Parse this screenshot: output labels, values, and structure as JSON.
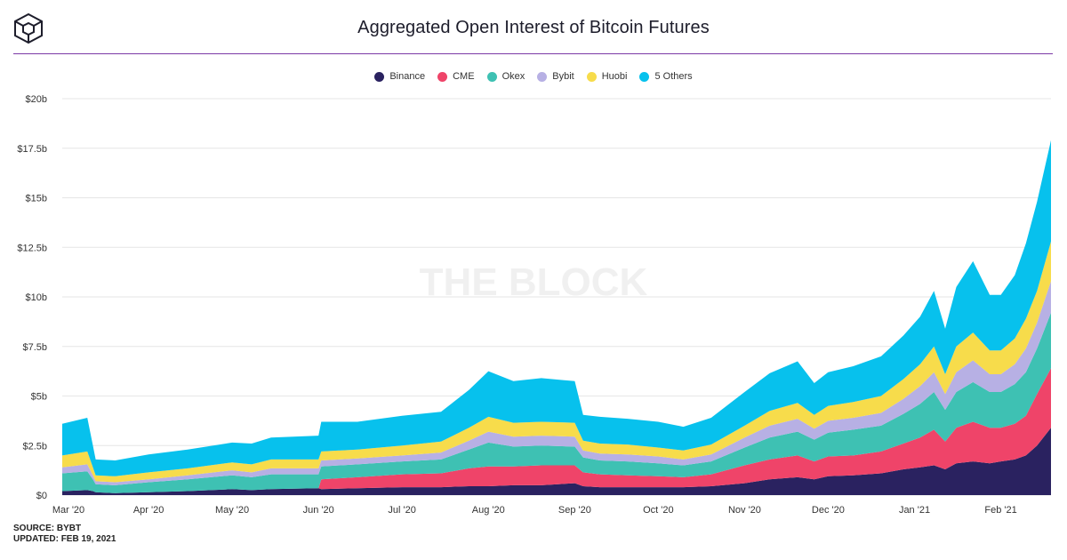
{
  "title": "Aggregated Open Interest of Bitcoin Futures",
  "watermark": "THE BLOCK",
  "footer": {
    "source": "SOURCE: BYBT",
    "updated": "UPDATED: FEB 19, 2021"
  },
  "chart_data": {
    "type": "area",
    "stacked": true,
    "title": "Aggregated Open Interest of Bitcoin Futures",
    "x_tick_labels": [
      "Mar '20",
      "Apr '20",
      "May '20",
      "Jun '20",
      "Jul '20",
      "Aug '20",
      "Sep '20",
      "Oct '20",
      "Nov '20",
      "Dec '20",
      "Jan '21",
      "Feb '21"
    ],
    "y_tick_labels": [
      "$0",
      "$2.5b",
      "$5b",
      "$7.5b",
      "$10b",
      "$12.5b",
      "$15b",
      "$17.5b",
      "$20b"
    ],
    "ylim": [
      0,
      20
    ],
    "y_unit": "billion USD",
    "legend_position": "top-center",
    "grid": true,
    "x": [
      "2020-03-01",
      "2020-03-10",
      "2020-03-12",
      "2020-03-13",
      "2020-03-20",
      "2020-04-01",
      "2020-04-15",
      "2020-05-01",
      "2020-05-08",
      "2020-05-15",
      "2020-06-01",
      "2020-06-02",
      "2020-06-15",
      "2020-07-01",
      "2020-07-15",
      "2020-07-25",
      "2020-08-01",
      "2020-08-10",
      "2020-08-20",
      "2020-09-01",
      "2020-09-04",
      "2020-09-10",
      "2020-09-20",
      "2020-10-01",
      "2020-10-10",
      "2020-10-20",
      "2020-11-01",
      "2020-11-10",
      "2020-11-20",
      "2020-11-26",
      "2020-12-01",
      "2020-12-10",
      "2020-12-20",
      "2020-12-28",
      "2021-01-03",
      "2021-01-08",
      "2021-01-12",
      "2021-01-16",
      "2021-01-22",
      "2021-01-28",
      "2021-02-01",
      "2021-02-06",
      "2021-02-10",
      "2021-02-14",
      "2021-02-19"
    ],
    "series": [
      {
        "name": "Binance",
        "color": "#2a2260",
        "values": [
          0.2,
          0.25,
          0.2,
          0.15,
          0.1,
          0.15,
          0.2,
          0.3,
          0.25,
          0.3,
          0.35,
          0.3,
          0.35,
          0.4,
          0.4,
          0.45,
          0.45,
          0.5,
          0.5,
          0.6,
          0.45,
          0.4,
          0.4,
          0.4,
          0.4,
          0.45,
          0.6,
          0.8,
          0.9,
          0.8,
          0.95,
          1.0,
          1.1,
          1.3,
          1.4,
          1.5,
          1.3,
          1.6,
          1.7,
          1.6,
          1.7,
          1.8,
          2.0,
          2.5,
          3.4
        ]
      },
      {
        "name": "CME",
        "color": "#ef4469",
        "values": [
          0,
          0,
          0,
          0,
          0,
          0,
          0,
          0,
          0,
          0,
          0,
          0.5,
          0.55,
          0.65,
          0.7,
          0.9,
          1.0,
          0.95,
          1.0,
          0.9,
          0.7,
          0.65,
          0.6,
          0.55,
          0.5,
          0.6,
          0.9,
          1.0,
          1.1,
          0.9,
          1.0,
          1.0,
          1.1,
          1.3,
          1.5,
          1.8,
          1.4,
          1.8,
          2.0,
          1.8,
          1.7,
          1.8,
          2.0,
          2.6,
          3.0
        ]
      },
      {
        "name": "Okex",
        "color": "#3ec1b3",
        "values": [
          0.9,
          0.95,
          0.6,
          0.4,
          0.4,
          0.5,
          0.6,
          0.7,
          0.65,
          0.75,
          0.7,
          0.65,
          0.65,
          0.65,
          0.7,
          0.95,
          1.2,
          1.0,
          1.0,
          0.95,
          0.75,
          0.7,
          0.7,
          0.65,
          0.6,
          0.65,
          0.9,
          1.1,
          1.2,
          1.1,
          1.2,
          1.3,
          1.3,
          1.5,
          1.7,
          1.9,
          1.6,
          1.8,
          2.0,
          1.8,
          1.8,
          2.0,
          2.2,
          2.3,
          2.8
        ]
      },
      {
        "name": "Bybit",
        "color": "#b7b0e4",
        "values": [
          0.3,
          0.35,
          0.2,
          0.15,
          0.15,
          0.15,
          0.2,
          0.25,
          0.25,
          0.3,
          0.3,
          0.3,
          0.3,
          0.3,
          0.35,
          0.45,
          0.55,
          0.5,
          0.5,
          0.5,
          0.35,
          0.35,
          0.35,
          0.35,
          0.3,
          0.35,
          0.5,
          0.6,
          0.65,
          0.55,
          0.6,
          0.6,
          0.65,
          0.75,
          0.9,
          1.0,
          0.8,
          1.0,
          1.1,
          0.9,
          0.9,
          1.0,
          1.2,
          1.3,
          1.6
        ]
      },
      {
        "name": "Huobi",
        "color": "#f7dc4b",
        "values": [
          0.6,
          0.65,
          0.4,
          0.3,
          0.3,
          0.35,
          0.35,
          0.4,
          0.4,
          0.45,
          0.45,
          0.45,
          0.45,
          0.5,
          0.55,
          0.65,
          0.75,
          0.7,
          0.7,
          0.7,
          0.5,
          0.5,
          0.5,
          0.45,
          0.45,
          0.5,
          0.6,
          0.75,
          0.8,
          0.7,
          0.75,
          0.8,
          0.85,
          1.0,
          1.1,
          1.3,
          1.0,
          1.3,
          1.4,
          1.2,
          1.2,
          1.3,
          1.5,
          1.6,
          2.0
        ]
      },
      {
        "name": "5 Others",
        "color": "#07c1ed",
        "values": [
          1.6,
          1.7,
          1.1,
          0.8,
          0.8,
          0.9,
          0.95,
          1.0,
          1.05,
          1.1,
          1.2,
          1.5,
          1.4,
          1.5,
          1.5,
          1.9,
          2.3,
          2.1,
          2.2,
          2.1,
          1.3,
          1.35,
          1.3,
          1.3,
          1.2,
          1.35,
          1.7,
          1.9,
          2.1,
          1.6,
          1.7,
          1.8,
          2.0,
          2.2,
          2.4,
          2.8,
          2.3,
          3.0,
          3.6,
          2.8,
          2.8,
          3.2,
          3.8,
          4.5,
          5.1
        ]
      }
    ]
  }
}
